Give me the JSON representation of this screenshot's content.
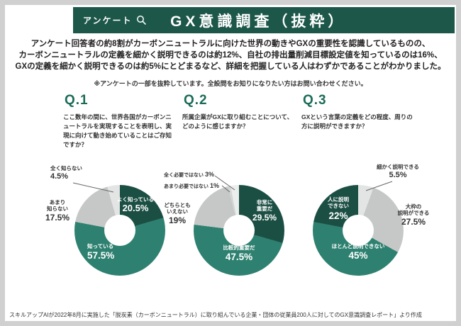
{
  "header": {
    "tag": "アンケート",
    "title": "GX意識調査（抜粋）"
  },
  "intro": {
    "lines": [
      "アンケート回答者の約8割がカーボンニュートラルに向けた世界の動きやGXの重要性を認識しているものの、",
      "カーボンニュートラルの定義を細かく説明できるのは約12%、自社の排出量削減目標設定値を知っているのは16%、",
      "GXの定義を細かく説明できるのは約5%にとどまるなど、詳細を把握している人はわずかであることがわかりました。"
    ]
  },
  "note": "※アンケートの一部を抜粋しています。全設問をお知りになりたい方はお問い合わせください。",
  "footer": "スキルアップAIが2022年8月に実施した「脱炭素（カーボンニュートラル）に取り組んでいる企業・団体の従業員200人に対してのGX意識調査レポート」より作成",
  "colors": {
    "brand_dark": "#1d574a",
    "accent": "#1b6b58",
    "seg_dark": "#1c4f43",
    "seg_mid": "#2e8170",
    "seg_gray": "#c6c8c7",
    "seg_pale": "#e3e5e4"
  },
  "chart_data": [
    {
      "type": "pie",
      "donut": true,
      "unit": "%",
      "question_no": "Q.1",
      "question": "ここ数年の間に、世界各国がカーボンニュートラルを実現することを表明し、実現に向けて動き始めていることはご存知ですか？",
      "segments": [
        {
          "label": "よく知っている",
          "value": 20.5,
          "color": "#1c4f43",
          "text": "#ffffff"
        },
        {
          "label": "知っている",
          "value": 57.5,
          "color": "#2e8170",
          "text": "#ffffff"
        },
        {
          "label": "あまり知らない",
          "value": 17.5,
          "color": "#c6c8c7",
          "text": "#333333"
        },
        {
          "label": "全く知らない",
          "value": 4.5,
          "color": "#e3e5e4",
          "text": "#333333"
        }
      ]
    },
    {
      "type": "pie",
      "donut": true,
      "unit": "%",
      "question_no": "Q.2",
      "question": "所属企業がGXに取り組むことについて、どのように感じますか？",
      "segments": [
        {
          "label": "非常に重要だ",
          "value": 29.5,
          "color": "#1c4f43",
          "text": "#ffffff"
        },
        {
          "label": "比較的重要だ",
          "value": 47.5,
          "color": "#2e8170",
          "text": "#ffffff"
        },
        {
          "label": "どちらともいえない",
          "value": 19,
          "color": "#c6c8c7",
          "text": "#333333"
        },
        {
          "label": "あまり必要ではない",
          "value": 1,
          "color": "#d4d6d5",
          "text": "#333333"
        },
        {
          "label": "全く必要ではない",
          "value": 3,
          "color": "#eceeed",
          "text": "#333333"
        }
      ]
    },
    {
      "type": "pie",
      "donut": true,
      "unit": "%",
      "question_no": "Q.3",
      "question": "GXという言葉の定義をどの程度、周りの方に説明ができますか？",
      "segments": [
        {
          "label": "細かく説明できる",
          "value": 5.5,
          "color": "#e3e5e4",
          "text": "#333333"
        },
        {
          "label": "大枠の説明ができる",
          "value": 27.5,
          "color": "#c6c8c7",
          "text": "#333333"
        },
        {
          "label": "ほとんど説明できない",
          "value": 45,
          "color": "#2e8170",
          "text": "#ffffff"
        },
        {
          "label": "人に説明できない",
          "value": 22,
          "color": "#1c4f43",
          "text": "#ffffff"
        }
      ]
    }
  ]
}
